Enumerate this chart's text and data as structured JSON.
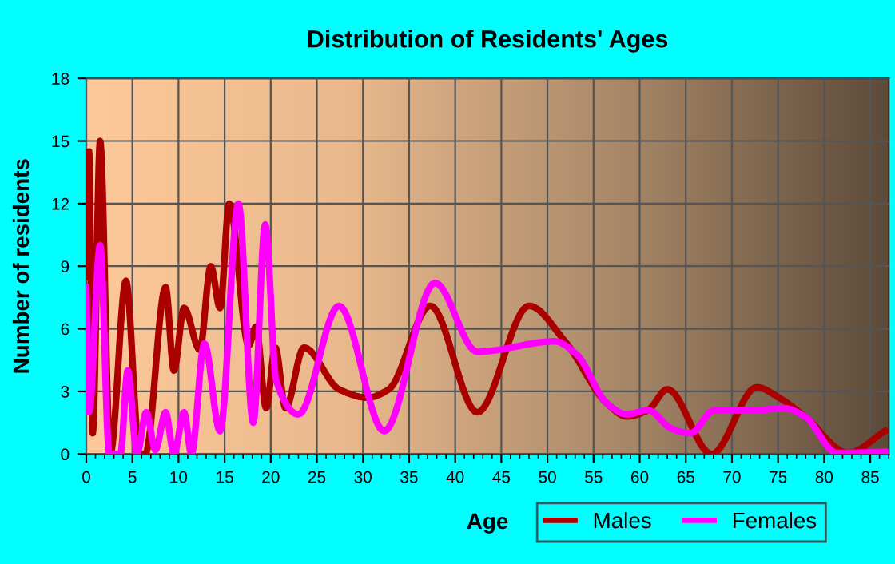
{
  "chart_data": {
    "type": "line",
    "title": "Distribution of Residents' Ages",
    "xlabel": "Age",
    "ylabel": "Number of residents",
    "xlim": [
      0,
      87
    ],
    "xticks": [
      0,
      5,
      10,
      15,
      20,
      25,
      30,
      35,
      40,
      45,
      50,
      55,
      60,
      65,
      70,
      75,
      80,
      85
    ],
    "ylim": [
      0,
      18
    ],
    "yticks": [
      0,
      3,
      6,
      9,
      12,
      15,
      18
    ],
    "grid": true,
    "legend": "bottom right",
    "marker": "none",
    "line_style": "solid",
    "series": [
      {
        "name": "Males",
        "color": "#aa0000",
        "x": [
          0,
          0.3,
          0.7,
          1.5,
          2.6,
          4.3,
          5.8,
          6.4,
          8.6,
          9.5,
          10.6,
          12.3,
          13.5,
          14.5,
          15.5,
          17.6,
          18.4,
          19.5,
          20.5,
          21.6,
          23.6,
          27.4,
          30.5,
          32.8,
          37.3,
          42.4,
          48.0,
          51.9,
          56.5,
          58.6,
          60.9,
          63.0,
          67.8,
          72.7,
          75.1,
          77.9,
          82.6,
          86.6
        ],
        "values": [
          8.5,
          14.5,
          1,
          15,
          0,
          8.3,
          0,
          0,
          8,
          4,
          7,
          5,
          9,
          7,
          12,
          5.2,
          6.1,
          2.2,
          5.1,
          2.2,
          5.1,
          3.1,
          2.7,
          3.1,
          7.1,
          2.0,
          7.1,
          5.4,
          2.4,
          1.8,
          2.1,
          3.1,
          0,
          3.2,
          2.7,
          1.8,
          0.05,
          1.1
        ]
      },
      {
        "name": "Females",
        "color": "#ff00ff",
        "x": [
          0,
          0.3,
          1.5,
          2.5,
          3.7,
          4.5,
          5.5,
          6.5,
          7.5,
          8.6,
          9.5,
          10.6,
          11.4,
          12.8,
          14.5,
          16.5,
          18.1,
          19.4,
          20.6,
          23.0,
          27.4,
          32.3,
          37.8,
          42.4,
          50.8,
          53.1,
          56.5,
          58.6,
          60.9,
          63.5,
          65.5,
          68.1,
          72.7,
          75.6,
          77.9,
          81.4,
          86.6
        ],
        "values": [
          8,
          2,
          10,
          0,
          0,
          4,
          0,
          2,
          0.2,
          2,
          0,
          2,
          0,
          5.3,
          1.1,
          12,
          1.5,
          11,
          3.5,
          1.9,
          7.1,
          1.1,
          8.2,
          4.9,
          5.4,
          4.8,
          2.4,
          1.9,
          2.1,
          1.2,
          1.0,
          2.1,
          2.1,
          2.2,
          1.8,
          0.05,
          0.1
        ]
      }
    ]
  }
}
